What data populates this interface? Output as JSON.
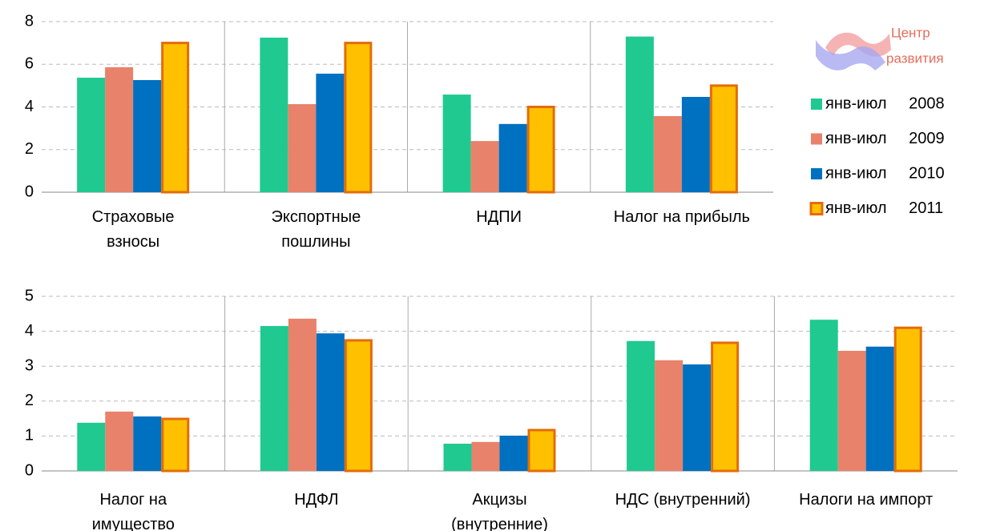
{
  "logo": [
    "Центр",
    "развития"
  ],
  "chart_data": [
    {
      "type": "bar",
      "legend": "right",
      "categories": [
        "Страховые\nвзносы",
        "Экспортные\nпошлины",
        "НДПИ",
        "Налог на прибыль"
      ],
      "ylim": [
        0,
        8
      ],
      "yticks": [
        0,
        2,
        4,
        6,
        8
      ],
      "grid": true,
      "series": [
        {
          "name": "янв-июл 2008",
          "color": "#20c990",
          "values": [
            5.37,
            7.25,
            4.58,
            7.3
          ]
        },
        {
          "name": "янв-июл 2009",
          "color": "#e8826a",
          "values": [
            5.86,
            4.13,
            2.4,
            3.57
          ]
        },
        {
          "name": "янв-июл 2010",
          "color": "#0070c0",
          "values": [
            5.26,
            5.56,
            3.2,
            4.47
          ]
        },
        {
          "name": "янв-июл 2011",
          "color": "#ffc000",
          "edgecolor": "#e46c0a",
          "values": [
            7.0,
            7.0,
            4.0,
            5.0
          ]
        }
      ]
    },
    {
      "type": "bar",
      "categories": [
        "Налог на\nимущество",
        "НДФЛ",
        "Акцизы\n(внутренние)",
        "НДС (внутренний)",
        "Налоги на импорт"
      ],
      "ylim": [
        0,
        5
      ],
      "yticks": [
        0,
        1,
        2,
        3,
        4,
        5
      ],
      "grid": true,
      "series": [
        {
          "name": "янв-июл 2008",
          "color": "#20c990",
          "values": [
            1.38,
            4.15,
            0.78,
            3.72,
            4.33
          ]
        },
        {
          "name": "янв-июл 2009",
          "color": "#e8826a",
          "values": [
            1.7,
            4.36,
            0.83,
            3.17,
            3.44
          ]
        },
        {
          "name": "янв-июл 2010",
          "color": "#0070c0",
          "values": [
            1.56,
            3.94,
            1.01,
            3.05,
            3.56
          ]
        },
        {
          "name": "янв-июл 2011",
          "color": "#ffc000",
          "edgecolor": "#e46c0a",
          "values": [
            1.49,
            3.74,
            1.17,
            3.67,
            4.1
          ]
        }
      ]
    }
  ]
}
